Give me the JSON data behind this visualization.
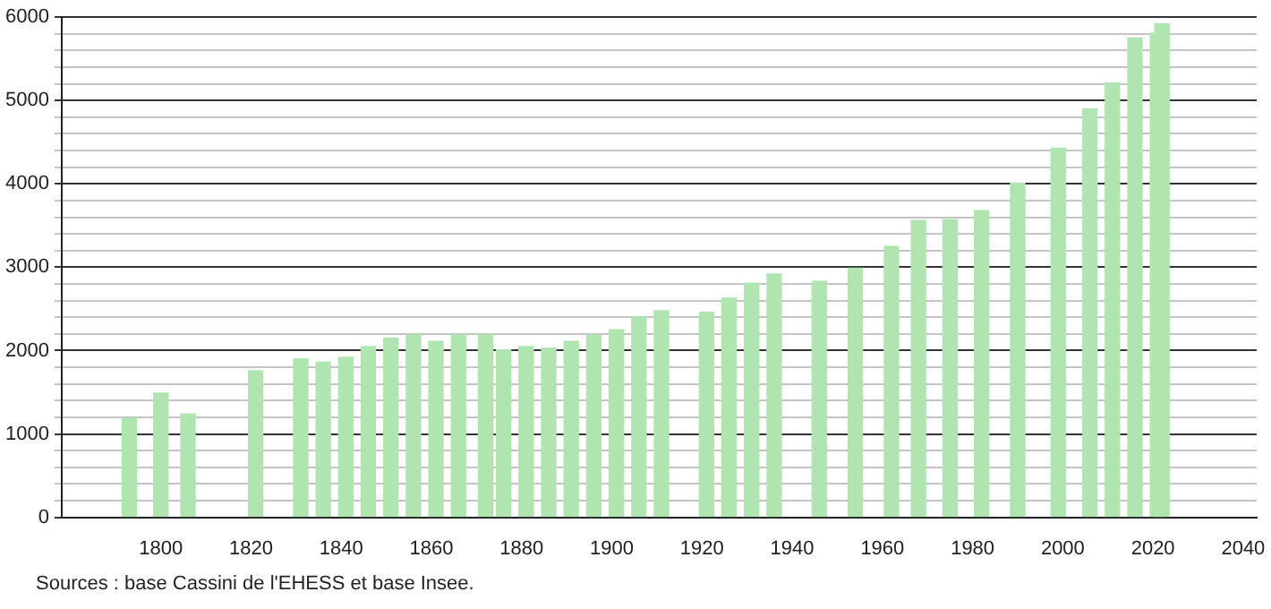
{
  "chart_data": {
    "type": "bar",
    "x": [
      1793,
      1800,
      1806,
      1821,
      1831,
      1836,
      1841,
      1846,
      1851,
      1856,
      1861,
      1866,
      1872,
      1876,
      1881,
      1886,
      1891,
      1896,
      1901,
      1906,
      1911,
      1921,
      1926,
      1931,
      1936,
      1946,
      1954,
      1962,
      1968,
      1975,
      1982,
      1990,
      1999,
      2006,
      2011,
      2016,
      2021,
      2022
    ],
    "values": [
      1190,
      1490,
      1240,
      1760,
      1900,
      1860,
      1920,
      2050,
      2150,
      2190,
      2110,
      2190,
      2190,
      2010,
      2050,
      2030,
      2110,
      2190,
      2250,
      2400,
      2480,
      2460,
      2630,
      2810,
      2920,
      2830,
      2990,
      3250,
      3560,
      3570,
      3680,
      4010,
      4430,
      4900,
      5210,
      5750,
      5810,
      5920
    ],
    "color": "#b0e4b0",
    "xlim": [
      1778,
      2043
    ],
    "xticks": [
      1800,
      1820,
      1840,
      1860,
      1880,
      1900,
      1920,
      1940,
      1960,
      1980,
      2000,
      2020,
      2040
    ],
    "ylim": [
      0,
      6000
    ],
    "yticks": [
      0,
      {
        "value": 200,
        "label": null
      },
      {
        "value": 400,
        "label": null
      },
      {
        "value": 600,
        "label": null
      },
      {
        "value": 800,
        "label": null
      },
      1000,
      {
        "value": 1200,
        "label": null
      },
      {
        "value": 1400,
        "label": null
      },
      {
        "value": 1600,
        "label": null
      },
      {
        "value": 1800,
        "label": null
      },
      2000,
      {
        "value": 2200,
        "label": null
      },
      {
        "value": 2400,
        "label": null
      },
      {
        "value": 2600,
        "label": null
      },
      {
        "value": 2800,
        "label": null
      },
      3000,
      {
        "value": 3200,
        "label": null
      },
      {
        "value": 3400,
        "label": null
      },
      {
        "value": 3600,
        "label": null
      },
      {
        "value": 3800,
        "label": null
      },
      4000,
      {
        "value": 4200,
        "label": null
      },
      {
        "value": 4400,
        "label": null
      },
      {
        "value": 4600,
        "label": null
      },
      {
        "value": 4800,
        "label": null
      },
      5000,
      {
        "value": 5200,
        "label": null
      },
      {
        "value": 5400,
        "label": null
      },
      {
        "value": 5600,
        "label": null
      },
      {
        "value": 5800,
        "label": null
      },
      6000
    ],
    "grid": "y",
    "legend": false,
    "annotations": [
      "Sources : base Cassini de l'EHESS et base Insee."
    ]
  }
}
